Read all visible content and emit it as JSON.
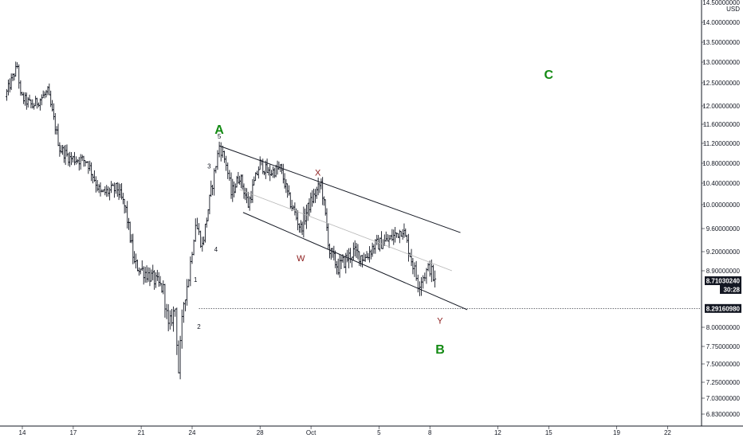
{
  "chart_data": {
    "type": "candlestick",
    "currency": "USD",
    "price_scale": {
      "top_label": "14.50000000",
      "ticks": [
        {
          "value": 14.0,
          "label": "14.00000000"
        },
        {
          "value": 13.5,
          "label": "13.50000000"
        },
        {
          "value": 13.0,
          "label": "13.00000000"
        },
        {
          "value": 12.5,
          "label": "12.50000000"
        },
        {
          "value": 12.0,
          "label": "12.00000000"
        },
        {
          "value": 11.6,
          "label": "11.60000000"
        },
        {
          "value": 11.2,
          "label": "11.20000000"
        },
        {
          "value": 10.8,
          "label": "10.80000000"
        },
        {
          "value": 10.4,
          "label": "10.40000000"
        },
        {
          "value": 10.0,
          "label": "10.00000000"
        },
        {
          "value": 9.6,
          "label": "9.60000000"
        },
        {
          "value": 9.2,
          "label": "9.20000000"
        },
        {
          "value": 8.9,
          "label": "8.90000000"
        },
        {
          "value": 8.0,
          "label": "8.00000000"
        },
        {
          "value": 7.75,
          "label": "7.75000000"
        },
        {
          "value": 7.5,
          "label": "7.50000000"
        },
        {
          "value": 7.25,
          "label": "7.25000000"
        },
        {
          "value": 7.03,
          "label": "7.03000000"
        },
        {
          "value": 6.83,
          "label": "6.83000000"
        }
      ]
    },
    "time_axis": [
      {
        "day": 14,
        "label": "14"
      },
      {
        "day": 17,
        "label": "17"
      },
      {
        "day": 21,
        "label": "21"
      },
      {
        "day": 24,
        "label": "24"
      },
      {
        "day": 28,
        "label": "28"
      },
      {
        "day": 31,
        "label": "Oct"
      },
      {
        "day": 35,
        "label": "5"
      },
      {
        "day": 38,
        "label": "8"
      },
      {
        "day": 42,
        "label": "12"
      },
      {
        "day": 45,
        "label": "15"
      },
      {
        "day": 49,
        "label": "19"
      },
      {
        "day": 52,
        "label": "22"
      }
    ],
    "path": [
      [
        13.0,
        12.2
      ],
      [
        13.7,
        12.9
      ],
      [
        13.9,
        12.2
      ],
      [
        14.6,
        12.0
      ],
      [
        15.5,
        12.3
      ],
      [
        16.2,
        11.1
      ],
      [
        16.8,
        10.9
      ],
      [
        17.8,
        10.85
      ],
      [
        18.6,
        10.2
      ],
      [
        19.6,
        10.3
      ],
      [
        20.1,
        9.9
      ],
      [
        20.6,
        9.0
      ],
      [
        21.6,
        8.8
      ],
      [
        22.3,
        8.6
      ],
      [
        22.6,
        8.0
      ],
      [
        23.0,
        8.3
      ],
      [
        23.2,
        7.4
      ],
      [
        23.5,
        8.4
      ],
      [
        23.8,
        8.8
      ],
      [
        24.2,
        9.7
      ],
      [
        24.6,
        9.3
      ],
      [
        25.2,
        10.4
      ],
      [
        25.6,
        11.15
      ],
      [
        26.0,
        10.8
      ],
      [
        26.3,
        10.2
      ],
      [
        26.8,
        10.55
      ],
      [
        27.3,
        10.0
      ],
      [
        28.0,
        10.8
      ],
      [
        28.5,
        10.6
      ],
      [
        29.2,
        10.7
      ],
      [
        29.7,
        10.1
      ],
      [
        30.4,
        9.6
      ],
      [
        30.9,
        10.0
      ],
      [
        31.6,
        10.4
      ],
      [
        32.1,
        9.2
      ],
      [
        32.6,
        8.95
      ],
      [
        33.5,
        9.2
      ],
      [
        34.2,
        9.1
      ],
      [
        34.7,
        9.3
      ],
      [
        35.6,
        9.4
      ],
      [
        36.4,
        9.6
      ],
      [
        37.0,
        9.0
      ],
      [
        37.3,
        8.7
      ],
      [
        37.7,
        8.85
      ],
      [
        38.0,
        8.95
      ],
      [
        38.3,
        8.71
      ]
    ],
    "last_price": {
      "label": "8.71030240",
      "countdown": "30:28"
    },
    "horizontal_line": {
      "value": 8.3,
      "label": "8.29160980"
    },
    "channel": {
      "upper": [
        [
          25.6,
          11.15
        ],
        [
          39.8,
          9.53
        ]
      ],
      "middle": [
        [
          26.8,
          10.28
        ],
        [
          39.3,
          8.9
        ]
      ],
      "lower": [
        [
          27.0,
          9.87
        ],
        [
          40.2,
          8.28
        ]
      ]
    },
    "annotations": [
      {
        "text": "A",
        "day": 25.6,
        "price": 11.4,
        "style": "big"
      },
      {
        "text": "B",
        "day": 38.6,
        "price": 7.65,
        "style": "big"
      },
      {
        "text": "C",
        "day": 45.0,
        "price": 12.6,
        "style": "big"
      },
      {
        "text": "W",
        "day": 30.4,
        "price": 9.05,
        "style": "sub"
      },
      {
        "text": "X",
        "day": 31.4,
        "price": 10.55,
        "style": "sub"
      },
      {
        "text": "Y",
        "day": 38.6,
        "price": 8.06,
        "style": "sub"
      },
      {
        "text": "1",
        "day": 24.2,
        "price": 8.72,
        "style": "num"
      },
      {
        "text": "2",
        "day": 24.4,
        "price": 7.98,
        "style": "num"
      },
      {
        "text": "3",
        "day": 25.0,
        "price": 10.7,
        "style": "num"
      },
      {
        "text": "4",
        "day": 25.4,
        "price": 9.2,
        "style": "num"
      },
      {
        "text": "5",
        "day": 25.6,
        "price": 11.3,
        "style": "num"
      }
    ]
  },
  "colors": {
    "candles": "#131722",
    "channel": "#131722",
    "midline": "#b8b8b8",
    "big_label": "#138a13",
    "sub_label": "#8b1a1a",
    "tag_bg": "#131722"
  }
}
